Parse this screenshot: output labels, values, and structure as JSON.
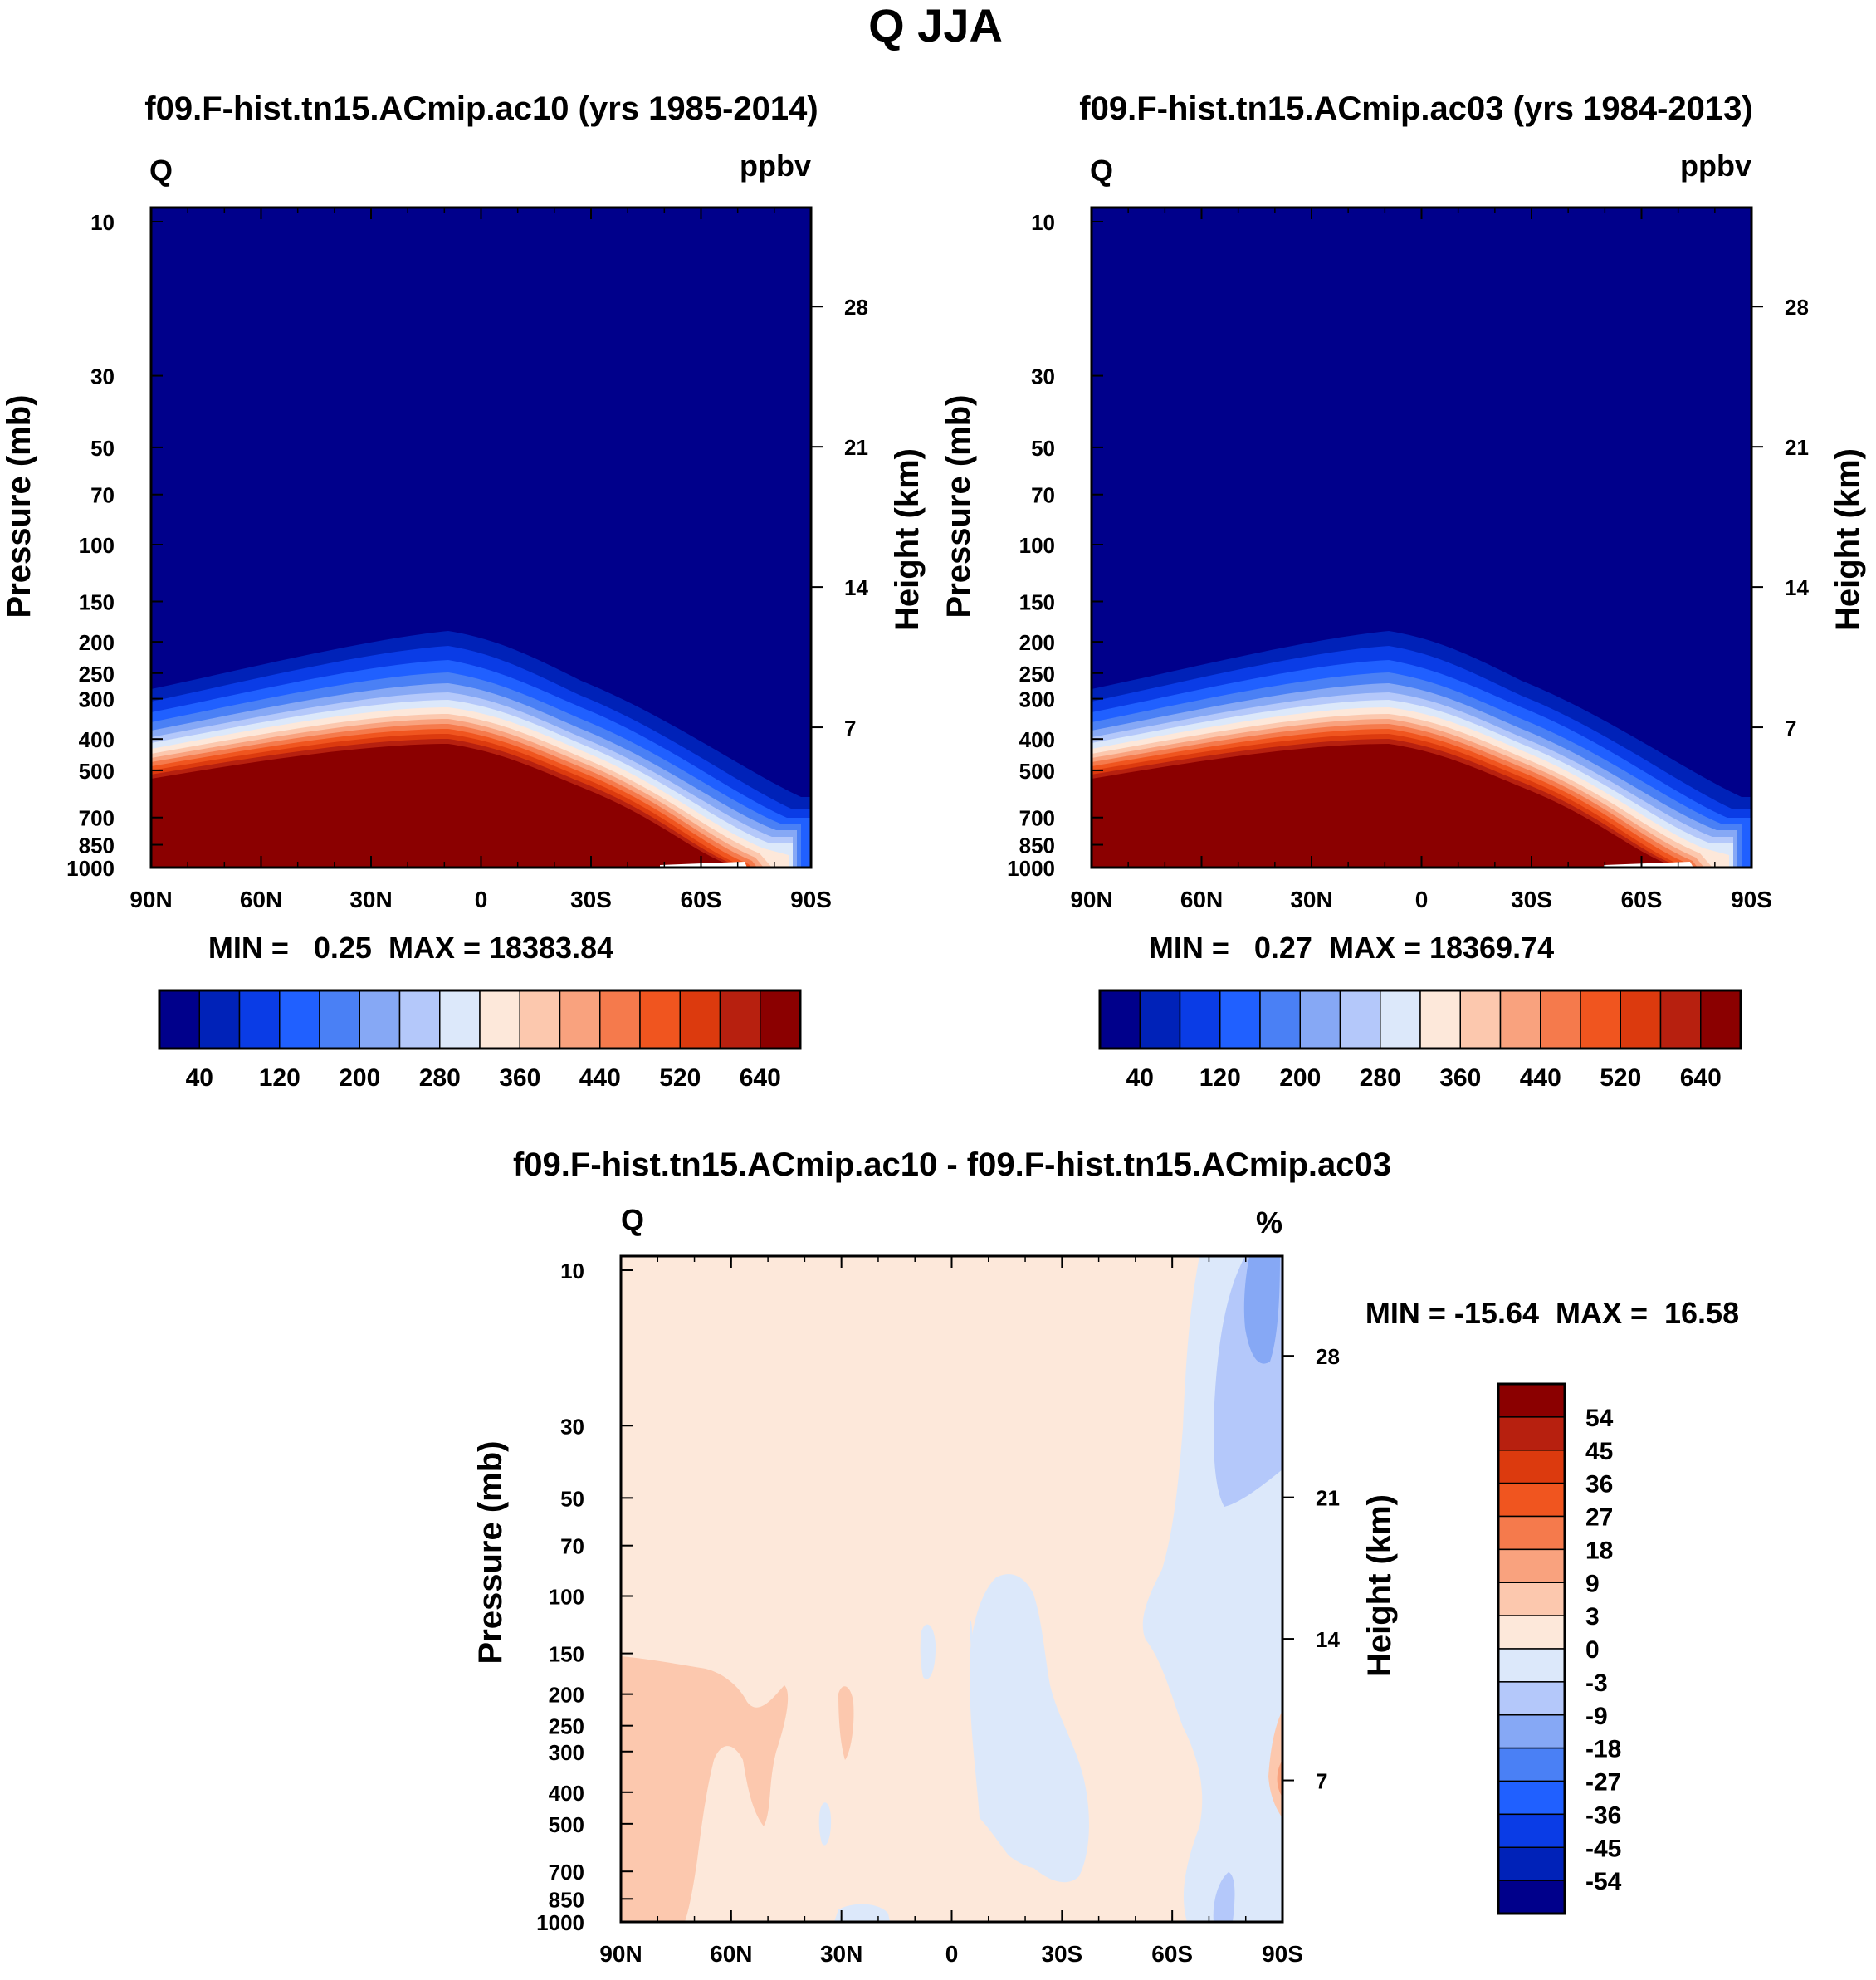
{
  "figure_title": "Q JJA",
  "chart_data": [
    {
      "type": "heatmap",
      "title": "f09.F-hist.tn15.ACmip.ac10 (yrs 1985-2014)",
      "left_label": "Q",
      "right_label": "ppbv",
      "ylabel": "Pressure (mb)",
      "ylabel_right": "Height (km)",
      "x_ticks": [
        "90N",
        "60N",
        "30N",
        "0",
        "30S",
        "60S",
        "90S"
      ],
      "x_values": [
        90,
        60,
        30,
        0,
        -30,
        -60,
        -90
      ],
      "y_ticks": [
        "10",
        "30",
        "50",
        "70",
        "100",
        "150",
        "200",
        "250",
        "300",
        "400",
        "500",
        "700",
        "850",
        "1000"
      ],
      "y_values": [
        10,
        30,
        50,
        70,
        100,
        150,
        200,
        250,
        300,
        400,
        500,
        700,
        850,
        1000
      ],
      "height_ticks": [
        "28",
        "21",
        "14",
        "7"
      ],
      "height_values": [
        28,
        21,
        14,
        7
      ],
      "xlim": [
        90,
        -90
      ],
      "ylim_mb": [
        1000,
        10
      ],
      "stats": "MIN =   0.25  MAX = 18383.84",
      "min": 0.25,
      "max": 18383.84,
      "colorbar_labels": [
        "40",
        "120",
        "200",
        "280",
        "360",
        "440",
        "520",
        "640"
      ],
      "colorbar_levels": [
        40,
        80,
        120,
        160,
        200,
        240,
        280,
        320,
        360,
        400,
        440,
        480,
        520,
        580,
        640
      ],
      "colorbar_colors": [
        "#00008B",
        "#0022B8",
        "#0A3CE6",
        "#2060FF",
        "#4A80F5",
        "#86A8F5",
        "#B4C8FA",
        "#DCE8FA",
        "#FDE8DA",
        "#FCC8AE",
        "#F9A27E",
        "#F57A4C",
        "#F0551F",
        "#DC3A0E",
        "#B7200F",
        "#8B0000"
      ]
    },
    {
      "type": "heatmap",
      "title": "f09.F-hist.tn15.ACmip.ac03 (yrs 1984-2013)",
      "left_label": "Q",
      "right_label": "ppbv",
      "ylabel": "Pressure (mb)",
      "ylabel_right": "Height (km)",
      "x_ticks": [
        "90N",
        "60N",
        "30N",
        "0",
        "30S",
        "60S",
        "90S"
      ],
      "x_values": [
        90,
        60,
        30,
        0,
        -30,
        -60,
        -90
      ],
      "y_ticks": [
        "10",
        "30",
        "50",
        "70",
        "100",
        "150",
        "200",
        "250",
        "300",
        "400",
        "500",
        "700",
        "850",
        "1000"
      ],
      "y_values": [
        10,
        30,
        50,
        70,
        100,
        150,
        200,
        250,
        300,
        400,
        500,
        700,
        850,
        1000
      ],
      "height_ticks": [
        "28",
        "21",
        "14",
        "7"
      ],
      "height_values": [
        28,
        21,
        14,
        7
      ],
      "xlim": [
        90,
        -90
      ],
      "ylim_mb": [
        1000,
        10
      ],
      "stats": "MIN =   0.27  MAX = 18369.74",
      "min": 0.27,
      "max": 18369.74,
      "colorbar_labels": [
        "40",
        "120",
        "200",
        "280",
        "360",
        "440",
        "520",
        "640"
      ],
      "colorbar_levels": [
        40,
        80,
        120,
        160,
        200,
        240,
        280,
        320,
        360,
        400,
        440,
        480,
        520,
        580,
        640
      ],
      "colorbar_colors": [
        "#00008B",
        "#0022B8",
        "#0A3CE6",
        "#2060FF",
        "#4A80F5",
        "#86A8F5",
        "#B4C8FA",
        "#DCE8FA",
        "#FDE8DA",
        "#FCC8AE",
        "#F9A27E",
        "#F57A4C",
        "#F0551F",
        "#DC3A0E",
        "#B7200F",
        "#8B0000"
      ]
    },
    {
      "type": "heatmap",
      "title": "f09.F-hist.tn15.ACmip.ac10 - f09.F-hist.tn15.ACmip.ac03",
      "left_label": "Q",
      "right_label": "%",
      "ylabel": "Pressure (mb)",
      "ylabel_right": "Height (km)",
      "x_ticks": [
        "90N",
        "60N",
        "30N",
        "0",
        "30S",
        "60S",
        "90S"
      ],
      "x_values": [
        90,
        60,
        30,
        0,
        -30,
        -60,
        -90
      ],
      "y_ticks": [
        "10",
        "30",
        "50",
        "70",
        "100",
        "150",
        "200",
        "250",
        "300",
        "400",
        "500",
        "700",
        "850",
        "1000"
      ],
      "y_values": [
        10,
        30,
        50,
        70,
        100,
        150,
        200,
        250,
        300,
        400,
        500,
        700,
        850,
        1000
      ],
      "height_ticks": [
        "28",
        "21",
        "14",
        "7"
      ],
      "height_values": [
        28,
        21,
        14,
        7
      ],
      "xlim": [
        90,
        -90
      ],
      "ylim_mb": [
        1000,
        10
      ],
      "stats": "MIN = -15.64  MAX =  16.58",
      "min": -15.64,
      "max": 16.58,
      "colorbar_labels": [
        "54",
        "45",
        "36",
        "27",
        "18",
        "9",
        "3",
        "0",
        "-3",
        "-9",
        "-18",
        "-27",
        "-36",
        "-45",
        "-54"
      ],
      "colorbar_levels": [
        54,
        45,
        36,
        27,
        18,
        9,
        3,
        0,
        -3,
        -9,
        -18,
        -27,
        -36,
        -45,
        -54
      ],
      "colorbar_colors": [
        "#8B0000",
        "#B7200F",
        "#DC3A0E",
        "#F0551F",
        "#F57A4C",
        "#F9A27E",
        "#FCC8AE",
        "#FDE8DA",
        "#DCE8FA",
        "#B4C8FA",
        "#86A8F5",
        "#4A80F5",
        "#2060FF",
        "#0A3CE6",
        "#0022B8",
        "#00008B"
      ]
    }
  ]
}
